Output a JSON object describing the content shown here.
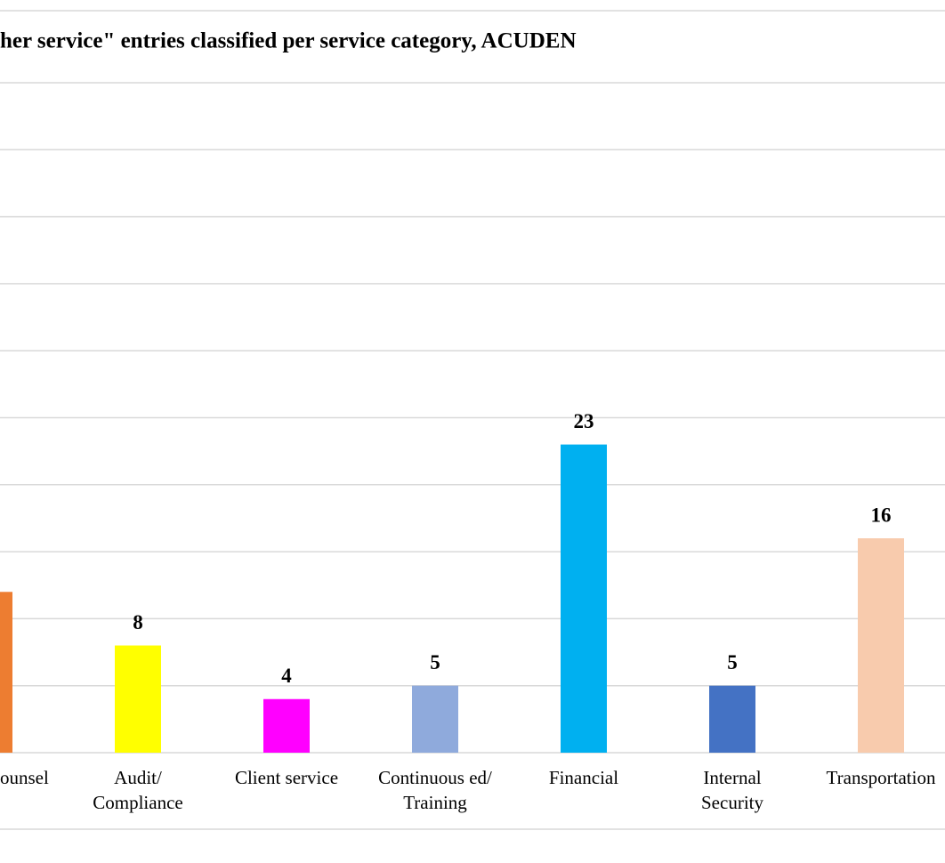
{
  "chart_data": {
    "type": "bar",
    "title": "her service\" entries classified per service category, ACUDEN",
    "categories": [
      "ounsel",
      "Audit/\nCompliance",
      "Client service",
      "Continuous ed/\nTraining",
      "Financial",
      "Internal\nSecurity",
      "Transportation"
    ],
    "values": [
      12,
      8,
      4,
      5,
      23,
      5,
      16
    ],
    "colors": [
      "#ED7D31",
      "#FFFF00",
      "#FF00FF",
      "#8FAADC",
      "#00B0F0",
      "#4472C4",
      "#F8CBAD"
    ],
    "ylim": [
      0,
      50
    ],
    "yticks": [
      0,
      5,
      10,
      15,
      20,
      25,
      30,
      35,
      40,
      45,
      50
    ],
    "grid": true
  }
}
